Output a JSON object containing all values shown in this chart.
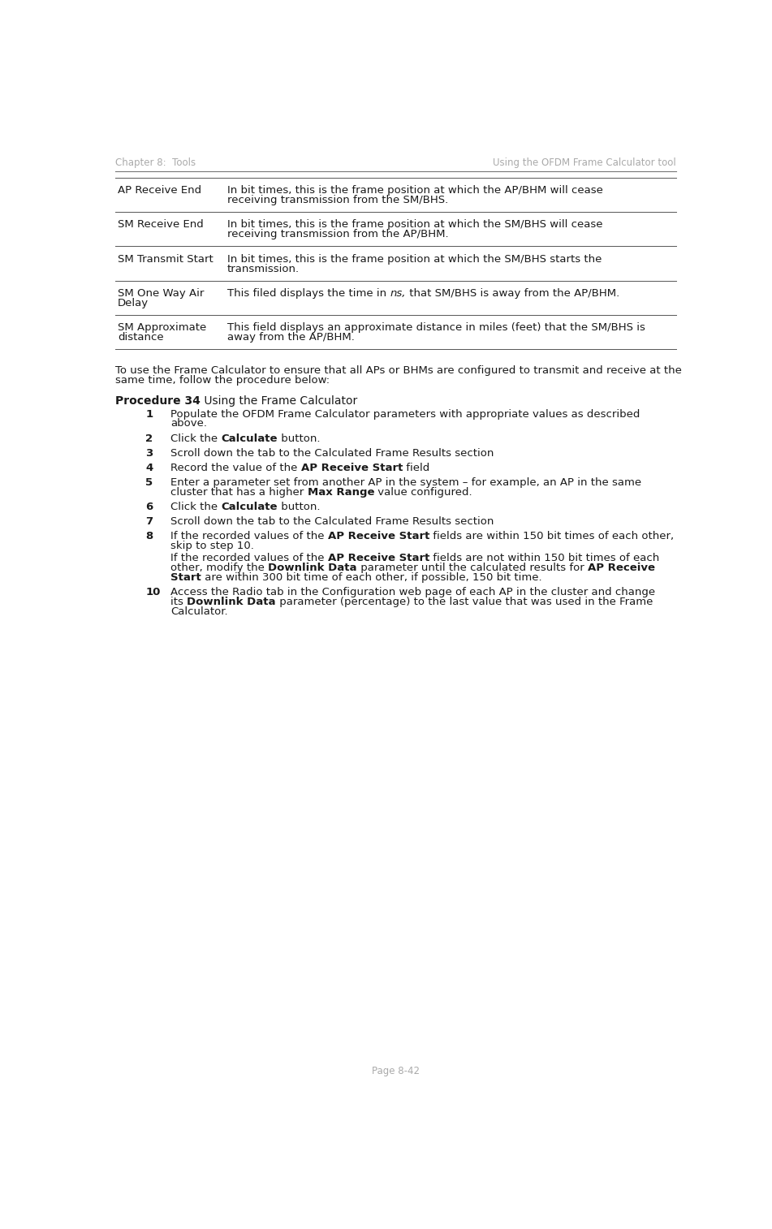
{
  "header_left": "Chapter 8:  Tools",
  "header_right": "Using the OFDM Frame Calculator tool",
  "footer": "Page 8-42",
  "header_color": "#aaaaaa",
  "text_color": "#1a1a1a",
  "line_color": "#555555",
  "bg_color": "#ffffff",
  "table_rows": [
    {
      "term": "AP Receive End",
      "term_lines": [
        "AP Receive End"
      ],
      "def_lines": [
        [
          {
            "t": "In bit times, this is the frame position at which the AP/BHM will cease",
            "b": false
          }
        ],
        [
          {
            "t": "receiving transmission from the SM/BHS.",
            "b": false
          }
        ]
      ]
    },
    {
      "term": "SM Receive End",
      "term_lines": [
        "SM Receive End"
      ],
      "def_lines": [
        [
          {
            "t": "In bit times, this is the frame position at which the SM/BHS will cease",
            "b": false
          }
        ],
        [
          {
            "t": "receiving transmission from the AP/BHM.",
            "b": false
          }
        ]
      ]
    },
    {
      "term": "SM Transmit Start",
      "term_lines": [
        "SM Transmit Start"
      ],
      "def_lines": [
        [
          {
            "t": "In bit times, this is the frame position at which the SM/BHS starts the",
            "b": false
          }
        ],
        [
          {
            "t": "transmission.",
            "b": false
          }
        ]
      ]
    },
    {
      "term": "SM One Way Air Delay",
      "term_lines": [
        "SM One Way Air",
        "Delay"
      ],
      "def_lines": [
        [
          {
            "t": "This filed displays the time in ",
            "b": false
          },
          {
            "t": "ns,",
            "b": false,
            "i": true
          },
          {
            "t": " that SM/BHS is away from the AP/BHM.",
            "b": false
          }
        ]
      ]
    },
    {
      "term": "SM Approximate distance",
      "term_lines": [
        "SM Approximate",
        "distance"
      ],
      "def_lines": [
        [
          {
            "t": "This field displays an approximate distance in miles (feet) that the SM/BHS is",
            "b": false
          }
        ],
        [
          {
            "t": "away from the AP/BHM.",
            "b": false
          }
        ]
      ]
    }
  ],
  "intro_lines": [
    "To use the Frame Calculator to ensure that all APs or BHMs are configured to transmit and receive at the",
    "same time, follow the procedure below:"
  ],
  "proc_title": [
    {
      "t": "Procedure 34",
      "b": true
    },
    {
      "t": " Using the Frame Calculator",
      "b": false
    }
  ],
  "steps": [
    {
      "num": "1",
      "lines": [
        [
          {
            "t": "Populate the OFDM Frame Calculator parameters with appropriate values as described",
            "b": false
          }
        ],
        [
          {
            "t": "above.",
            "b": false
          }
        ]
      ],
      "cont": []
    },
    {
      "num": "2",
      "lines": [
        [
          {
            "t": "Click the ",
            "b": false
          },
          {
            "t": "Calculate",
            "b": true
          },
          {
            "t": " button.",
            "b": false
          }
        ]
      ],
      "cont": []
    },
    {
      "num": "3",
      "lines": [
        [
          {
            "t": "Scroll down the tab to the Calculated Frame Results section",
            "b": false
          }
        ]
      ],
      "cont": []
    },
    {
      "num": "4",
      "lines": [
        [
          {
            "t": "Record the value of the ",
            "b": false
          },
          {
            "t": "AP Receive Start",
            "b": true
          },
          {
            "t": " field",
            "b": false
          }
        ]
      ],
      "cont": []
    },
    {
      "num": "5",
      "lines": [
        [
          {
            "t": "Enter a parameter set from another AP in the system – for example, an AP in the same",
            "b": false
          }
        ],
        [
          {
            "t": "cluster that has a higher ",
            "b": false
          },
          {
            "t": "Max Range",
            "b": true
          },
          {
            "t": " value configured.",
            "b": false
          }
        ]
      ],
      "cont": []
    },
    {
      "num": "6",
      "lines": [
        [
          {
            "t": "Click the ",
            "b": false
          },
          {
            "t": "Calculate",
            "b": true
          },
          {
            "t": " button.",
            "b": false
          }
        ]
      ],
      "cont": []
    },
    {
      "num": "7",
      "lines": [
        [
          {
            "t": "Scroll down the tab to the Calculated Frame Results section",
            "b": false
          }
        ]
      ],
      "cont": []
    },
    {
      "num": "8",
      "lines": [
        [
          {
            "t": "If the recorded values of the ",
            "b": false
          },
          {
            "t": "AP Receive Start",
            "b": true
          },
          {
            "t": " fields are within 150 bit times of each other,",
            "b": false
          }
        ],
        [
          {
            "t": "skip to step 10.",
            "b": false
          }
        ]
      ],
      "cont": [
        [
          {
            "t": "If the recorded values of the ",
            "b": false
          },
          {
            "t": "AP Receive Start",
            "b": true
          },
          {
            "t": " fields are not within 150 bit times of each",
            "b": false
          }
        ],
        [
          {
            "t": "other, modify the ",
            "b": false
          },
          {
            "t": "Downlink Data",
            "b": true
          },
          {
            "t": " parameter until the calculated results for ",
            "b": false
          },
          {
            "t": "AP Receive",
            "b": true
          }
        ],
        [
          {
            "t": "Start",
            "b": true
          },
          {
            "t": " are within 300 bit time of each other, if possible, 150 bit time.",
            "b": false
          }
        ]
      ]
    },
    {
      "num": "10",
      "lines": [
        [
          {
            "t": "Access the Radio tab in the Configuration web page of each AP in the cluster and change",
            "b": false
          }
        ],
        [
          {
            "t": "its ",
            "b": false
          },
          {
            "t": "Downlink Data",
            "b": true
          },
          {
            "t": " parameter (percentage) to the last value that was used in the Frame",
            "b": false
          }
        ],
        [
          {
            "t": "Calculator.",
            "b": false
          }
        ]
      ],
      "cont": []
    }
  ]
}
